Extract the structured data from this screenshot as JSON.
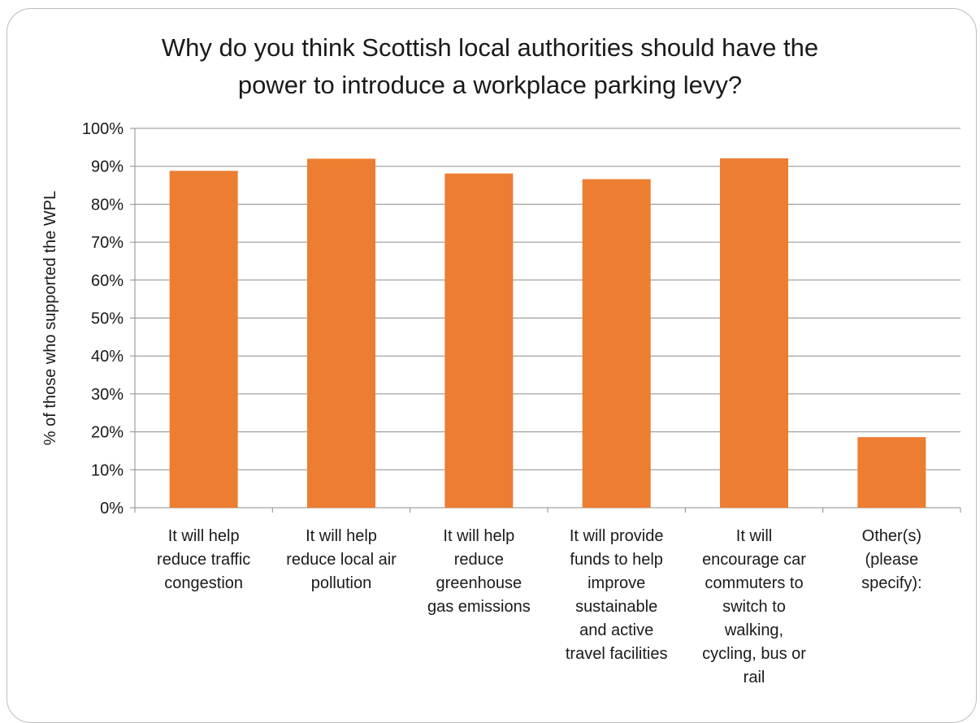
{
  "chart_data": {
    "type": "bar",
    "title_lines": [
      "Why do you think Scottish local authorities should have the",
      "power to introduce a workplace parking levy?"
    ],
    "xlabel": "",
    "ylabel": "% of those who supported the WPL",
    "ylim": [
      0,
      100
    ],
    "yticks": [
      "0%",
      "10%",
      "20%",
      "30%",
      "40%",
      "50%",
      "60%",
      "70%",
      "80%",
      "90%",
      "100%"
    ],
    "grid": true,
    "bar_color": "#ED7D31",
    "categories": [
      [
        "It will help",
        "reduce traffic",
        "congestion"
      ],
      [
        "It will help",
        "reduce local air",
        "pollution"
      ],
      [
        "It will help",
        "reduce",
        "greenhouse",
        "gas emissions"
      ],
      [
        "It will provide",
        "funds to help",
        "improve",
        "sustainable",
        "and active",
        "travel facilities"
      ],
      [
        "It will",
        "encourage car",
        "commuters to",
        "switch to",
        "walking,",
        "cycling, bus or",
        "rail"
      ],
      [
        "Other(s)",
        "(please",
        "specify):"
      ]
    ],
    "values": [
      88.8,
      92.0,
      88.1,
      86.6,
      92.1,
      18.6
    ]
  }
}
